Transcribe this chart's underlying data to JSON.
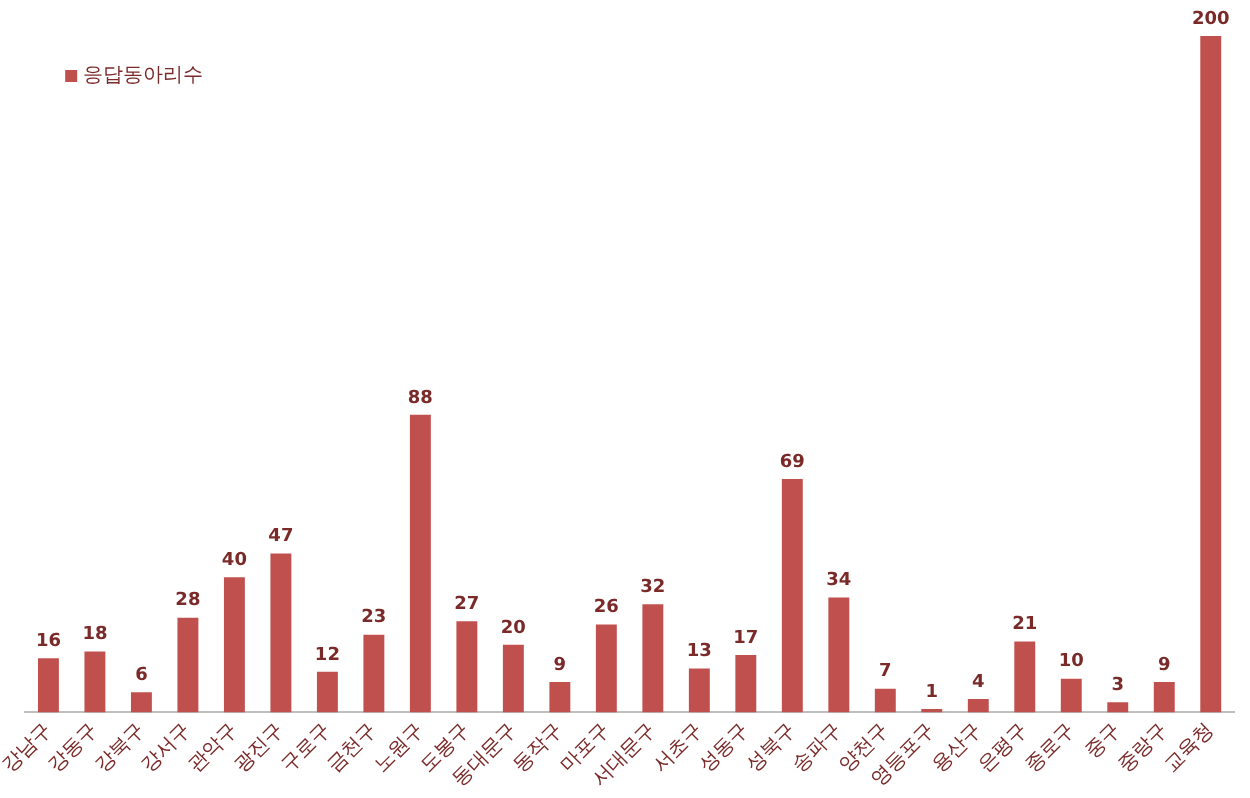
{
  "chart_data": {
    "type": "bar",
    "categories": [
      "강남구",
      "강동구",
      "강북구",
      "강서구",
      "관악구",
      "광진구",
      "구로구",
      "금천구",
      "노원구",
      "도봉구",
      "동대문구",
      "동작구",
      "마포구",
      "서대문구",
      "서초구",
      "성동구",
      "성북구",
      "송파구",
      "양천구",
      "영등포구",
      "용산구",
      "은평구",
      "종로구",
      "중구",
      "중랑구",
      "교육청"
    ],
    "series": [
      {
        "name": "응답동아리수",
        "color": "#c0504d",
        "values": [
          16,
          18,
          6,
          28,
          40,
          47,
          12,
          23,
          88,
          27,
          20,
          9,
          26,
          32,
          13,
          17,
          69,
          34,
          7,
          1,
          4,
          21,
          10,
          3,
          9,
          200
        ]
      }
    ],
    "data_labels": true,
    "legend": "top left",
    "grid": false
  }
}
